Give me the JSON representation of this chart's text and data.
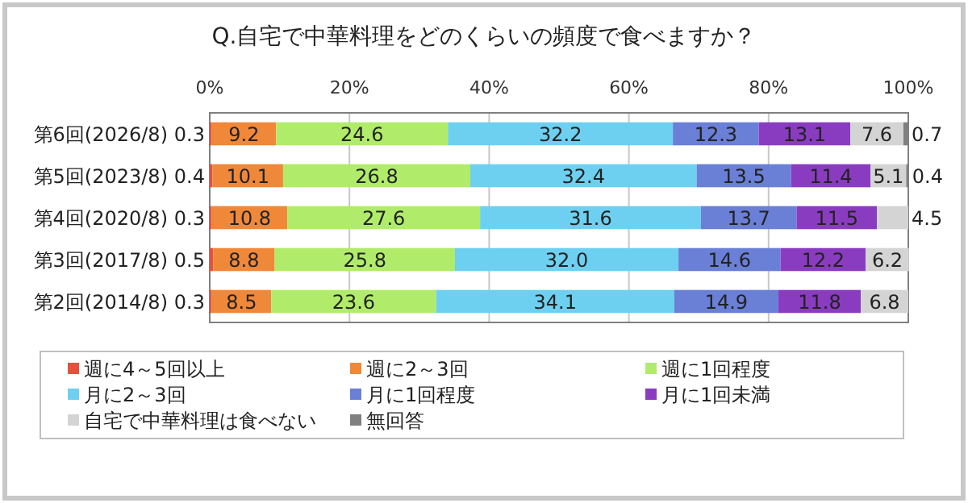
{
  "chart_data": {
    "type": "bar",
    "orientation": "horizontal",
    "stacked": true,
    "title": "Q.自宅で中華料理をどのくらいの頻度で食べますか？",
    "categories": [
      "第6回(2026/8)",
      "第5回(2023/8)",
      "第4回(2020/8)",
      "第3回(2017/8)",
      "第2回(2014/8)"
    ],
    "series": [
      {
        "name": "週に4～5回以上",
        "color": "#e8503a",
        "values": [
          0.3,
          0.4,
          0.3,
          0.5,
          0.3
        ],
        "value_labels": [
          "0.3",
          "0.4",
          "0.3",
          "0.5",
          "0.3"
        ]
      },
      {
        "name": "週に2～3回",
        "color": "#f0883a",
        "values": [
          9.2,
          10.1,
          10.8,
          8.8,
          8.5
        ],
        "value_labels": [
          "9.2",
          "10.1",
          "10.8",
          "8.8",
          "8.5"
        ]
      },
      {
        "name": "週に1回程度",
        "color": "#b0ec6a",
        "values": [
          24.6,
          26.8,
          27.6,
          25.8,
          23.6
        ],
        "value_labels": [
          "24.6",
          "26.8",
          "27.6",
          "25.8",
          "23.6"
        ]
      },
      {
        "name": "月に2～3回",
        "color": "#6dd0f0",
        "values": [
          32.2,
          32.4,
          31.6,
          32.0,
          34.1
        ],
        "value_labels": [
          "32.2",
          "32.4",
          "31.6",
          "32.0",
          "34.1"
        ]
      },
      {
        "name": "月に1回程度",
        "color": "#6a7fd6",
        "values": [
          12.3,
          13.5,
          13.7,
          14.6,
          14.9
        ],
        "value_labels": [
          "12.3",
          "13.5",
          "13.7",
          "14.6",
          "14.9"
        ]
      },
      {
        "name": "月に1回未満",
        "color": "#8a3cc0",
        "values": [
          13.1,
          11.4,
          11.5,
          12.2,
          11.8
        ],
        "value_labels": [
          "13.1",
          "11.4",
          "11.5",
          "12.2",
          "11.8"
        ]
      },
      {
        "name": "自宅で中華料理は食べない",
        "color": "#d4d4d4",
        "values": [
          7.6,
          5.1,
          4.5,
          6.2,
          6.8
        ],
        "value_labels": [
          "7.6",
          "5.1",
          "4.5",
          "6.2",
          "6.8"
        ]
      },
      {
        "name": "無回答",
        "color": "#808080",
        "values": [
          0.7,
          0.4,
          null,
          null,
          null
        ],
        "value_labels": [
          "0.7",
          "0.4",
          null,
          null,
          null
        ]
      }
    ],
    "xlim": [
      0,
      100
    ],
    "xticks": [
      {
        "value": 0,
        "label": "0%"
      },
      {
        "value": 20,
        "label": "20%"
      },
      {
        "value": 40,
        "label": "40%"
      },
      {
        "value": 60,
        "label": "60%"
      },
      {
        "value": 80,
        "label": "80%"
      },
      {
        "value": 100,
        "label": "100%"
      }
    ],
    "grid": "x",
    "legend": "bottom"
  }
}
